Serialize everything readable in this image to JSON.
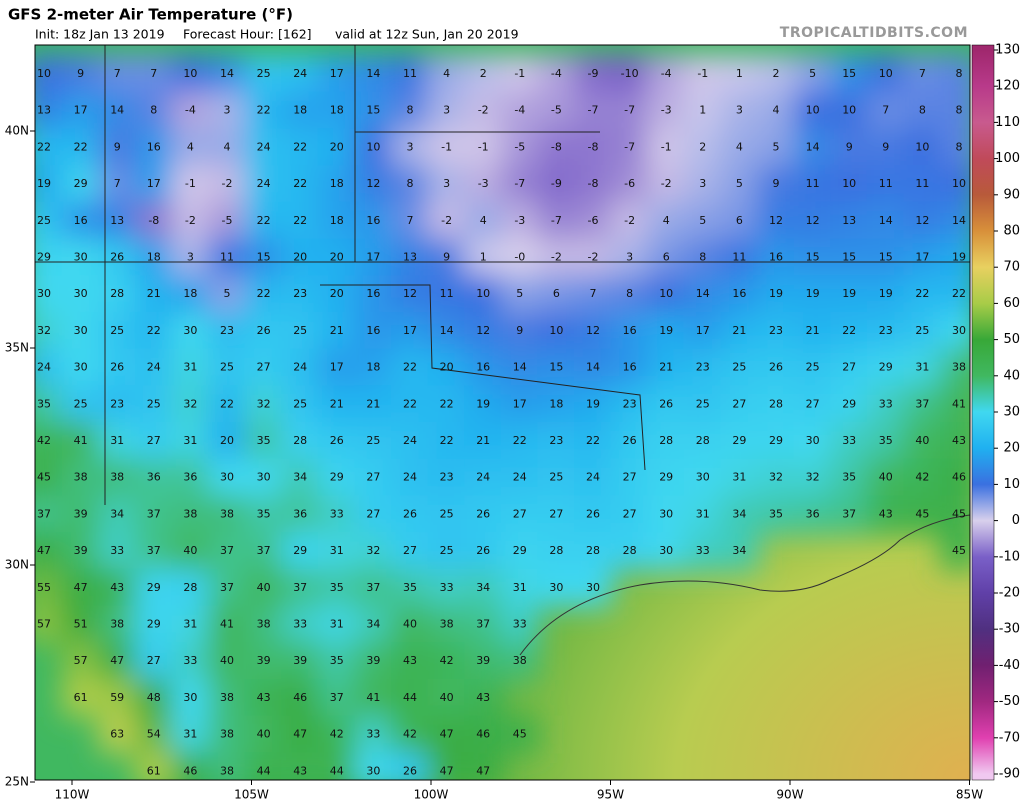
{
  "header": {
    "title": "GFS 2-meter Air Temperature (°F)",
    "init": "Init: 18z Jan 13 2019",
    "forecast_hour": "Forecast Hour: [162]",
    "valid": "valid at 12z Sun, Jan 20 2019",
    "source": "TROPICALTIDBITS.COM"
  },
  "map": {
    "lat_labels": [
      "40N",
      "35N",
      "30N",
      "25N"
    ],
    "lon_labels": [
      "110W",
      "105W",
      "100W",
      "95W",
      "90W",
      "85W"
    ],
    "grid": [
      [
        10,
        9,
        7,
        7,
        10,
        14,
        25,
        24,
        17,
        14,
        11,
        4,
        2,
        -1,
        -4,
        -9,
        -10,
        -4,
        -1,
        1,
        2,
        5,
        15,
        10,
        7,
        8
      ],
      [
        13,
        17,
        14,
        8,
        -4,
        3,
        22,
        18,
        18,
        15,
        8,
        3,
        -2,
        -4,
        -5,
        -7,
        -7,
        -3,
        1,
        3,
        4,
        10,
        10,
        7,
        8,
        8
      ],
      [
        22,
        22,
        9,
        16,
        4,
        4,
        24,
        22,
        20,
        10,
        3,
        -1,
        -1,
        -5,
        -8,
        -8,
        -7,
        -1,
        2,
        4,
        5,
        14,
        9,
        9,
        10,
        8
      ],
      [
        19,
        29,
        7,
        17,
        -1,
        -2,
        24,
        22,
        18,
        12,
        8,
        3,
        -3,
        -7,
        -9,
        -8,
        -6,
        -2,
        3,
        5,
        9,
        11,
        10,
        11,
        11,
        10
      ],
      [
        25,
        16,
        13,
        -8,
        -2,
        -5,
        22,
        22,
        18,
        16,
        7,
        -2,
        4,
        -3,
        -7,
        -6,
        -2,
        4,
        5,
        6,
        12,
        12,
        13,
        14,
        12,
        14
      ],
      [
        29,
        30,
        26,
        18,
        3,
        11,
        15,
        20,
        20,
        17,
        13,
        9,
        1,
        {
          "value": 0,
          "label": "-0"
        },
        -2,
        -2,
        3,
        6,
        8,
        11,
        16,
        15,
        15,
        15,
        17,
        19
      ],
      [
        30,
        30,
        28,
        21,
        18,
        5,
        22,
        23,
        20,
        16,
        12,
        11,
        10,
        5,
        6,
        7,
        8,
        10,
        14,
        16,
        19,
        19,
        19,
        19,
        22,
        22
      ],
      [
        32,
        30,
        25,
        22,
        30,
        23,
        26,
        25,
        21,
        16,
        17,
        14,
        12,
        9,
        10,
        12,
        16,
        19,
        17,
        21,
        23,
        21,
        22,
        23,
        25,
        30
      ],
      [
        24,
        30,
        26,
        24,
        31,
        25,
        27,
        24,
        17,
        18,
        22,
        20,
        16,
        14,
        15,
        14,
        16,
        21,
        23,
        25,
        26,
        25,
        27,
        29,
        31,
        38
      ],
      [
        35,
        25,
        23,
        25,
        32,
        22,
        32,
        25,
        21,
        21,
        22,
        22,
        19,
        17,
        18,
        19,
        23,
        26,
        25,
        27,
        28,
        27,
        29,
        33,
        37,
        41
      ],
      [
        42,
        41,
        31,
        27,
        31,
        20,
        35,
        28,
        26,
        25,
        24,
        22,
        21,
        22,
        23,
        22,
        26,
        28,
        28,
        29,
        29,
        30,
        33,
        35,
        40,
        43
      ],
      [
        45,
        38,
        38,
        36,
        36,
        30,
        30,
        34,
        29,
        27,
        24,
        23,
        24,
        24,
        25,
        24,
        27,
        29,
        30,
        31,
        32,
        32,
        35,
        40,
        42,
        46
      ],
      [
        37,
        39,
        34,
        37,
        38,
        38,
        35,
        36,
        33,
        27,
        26,
        25,
        26,
        27,
        27,
        26,
        27,
        30,
        31,
        34,
        35,
        36,
        37,
        43,
        45,
        45
      ],
      [
        47,
        39,
        33,
        37,
        40,
        37,
        37,
        29,
        31,
        32,
        27,
        25,
        26,
        29,
        28,
        28,
        28,
        30,
        33,
        34,
        null,
        null,
        null,
        null,
        null,
        45
      ],
      [
        55,
        47,
        43,
        29,
        28,
        37,
        40,
        37,
        35,
        37,
        35,
        33,
        34,
        31,
        30,
        30,
        null,
        null,
        null,
        null,
        null,
        null,
        null,
        null,
        null,
        null
      ],
      [
        57,
        51,
        38,
        29,
        31,
        41,
        38,
        33,
        31,
        34,
        40,
        38,
        37,
        33,
        null,
        null,
        null,
        null,
        null,
        null,
        null,
        null,
        null,
        null,
        null,
        null
      ],
      [
        null,
        57,
        47,
        27,
        33,
        40,
        39,
        39,
        35,
        39,
        43,
        42,
        39,
        38,
        null,
        null,
        null,
        null,
        null,
        null,
        null,
        null,
        null,
        null,
        null,
        null
      ],
      [
        null,
        61,
        59,
        48,
        30,
        38,
        43,
        46,
        37,
        41,
        44,
        40,
        43,
        null,
        null,
        null,
        null,
        null,
        null,
        null,
        null,
        null,
        null,
        null,
        null,
        null
      ],
      [
        null,
        null,
        63,
        54,
        31,
        38,
        40,
        47,
        42,
        33,
        42,
        47,
        46,
        45,
        null,
        null,
        null,
        null,
        null,
        null,
        null,
        null,
        null,
        null,
        null,
        null
      ],
      [
        null,
        null,
        null,
        61,
        46,
        38,
        44,
        43,
        44,
        30,
        26,
        47,
        47,
        null,
        null,
        null,
        null,
        null,
        null,
        null,
        null,
        null,
        null,
        null,
        null,
        null
      ]
    ]
  },
  "colorbar": {
    "ticks": [
      130,
      120,
      110,
      100,
      90,
      80,
      70,
      60,
      50,
      40,
      30,
      20,
      10,
      0,
      -10,
      -20,
      -30,
      -40,
      -50,
      -70,
      -90
    ],
    "colors": [
      "#a0286e",
      "#b83a8a",
      "#c85a8e",
      "#c04a5a",
      "#b85a3a",
      "#d8903a",
      "#e8d060",
      "#a8cc48",
      "#38a838",
      "#40b860",
      "#40d8f0",
      "#20b0f0",
      "#3a70e0",
      "#d8d0ec",
      "#7a60c8",
      "#6040a8",
      "#503080",
      "#702070",
      "#a02880",
      "#e040b0",
      "#f0c8f0"
    ]
  }
}
